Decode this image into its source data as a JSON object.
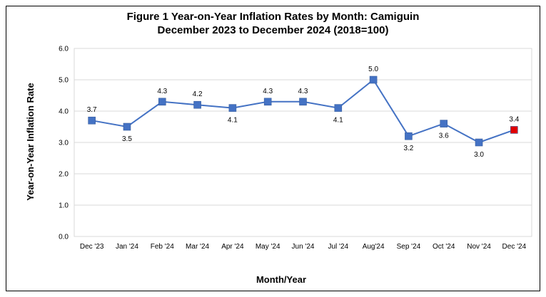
{
  "chart_data": {
    "type": "line",
    "title_line1": "Figure 1  Year-on-Year Inflation Rates by Month: Camiguin",
    "title_line2": "December 2023 to December 2024 (2018=100)",
    "xlabel": "Month/Year",
    "ylabel": "Year-on-Year Inflation Rate",
    "ylim": [
      0,
      6
    ],
    "yticks": [
      "0.0",
      "1.0",
      "2.0",
      "3.0",
      "4.0",
      "5.0",
      "6.0"
    ],
    "categories": [
      "Dec '23",
      "Jan '24",
      "Feb '24",
      "Mar '24",
      "Apr '24",
      "May '24",
      "Jun '24",
      "Jul '24",
      "Aug'24",
      "Sep '24",
      "Oct '24",
      "Nov '24",
      "Dec '24"
    ],
    "values": [
      3.7,
      3.5,
      4.3,
      4.2,
      4.1,
      4.3,
      4.3,
      4.1,
      5.0,
      3.2,
      3.6,
      3.0,
      3.4
    ],
    "labels": [
      "3.7",
      "3.5",
      "4.3",
      "4.2",
      "4.1",
      "4.3",
      "4.3",
      "4.1",
      "5.0",
      "3.2",
      "3.6",
      "3.0",
      "3.4"
    ],
    "label_positions": [
      "above",
      "below",
      "above",
      "above",
      "below",
      "above",
      "above",
      "below",
      "above",
      "below",
      "below",
      "below",
      "above"
    ],
    "grid": true,
    "line_color": "#4472C4",
    "marker_color": "#4472C4",
    "highlight_color": "#E00000",
    "highlight_index": 12
  }
}
